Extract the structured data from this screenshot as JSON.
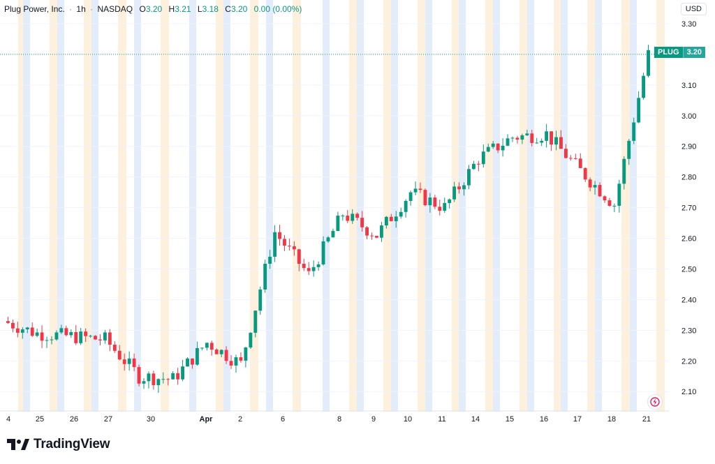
{
  "header": {
    "symbol": "Plug Power, Inc.",
    "interval": "1h",
    "exchange": "NASDAQ",
    "o_label": "O",
    "o_value": "3.20",
    "h_label": "H",
    "h_value": "3.21",
    "l_label": "L",
    "l_value": "3.18",
    "c_label": "C",
    "c_value": "3.20",
    "change": "0.00 (0.00%)"
  },
  "currency": "USD",
  "price_tag": {
    "ticker": "PLUG",
    "price": "3.20"
  },
  "branding": {
    "name": "TradingView"
  },
  "colors": {
    "up": "#089981",
    "down": "#f23645",
    "session_pre": "#e3ecfb",
    "session_post": "#fdf0dd"
  },
  "chart_data": {
    "type": "candlestick",
    "title": "Plug Power, Inc. · 1h · NASDAQ",
    "ylim": [
      2.03,
      3.33
    ],
    "y_ticks": [
      2.1,
      2.2,
      2.3,
      2.4,
      2.5,
      2.6,
      2.7,
      2.8,
      2.9,
      3.0,
      3.1,
      3.2,
      3.3
    ],
    "x_labels": [
      "4",
      "25",
      "26",
      "27",
      "30",
      "Apr",
      "2",
      "6",
      "8",
      "9",
      "10",
      "11",
      "14",
      "15",
      "16",
      "17",
      "18",
      "21"
    ],
    "day_closes": [
      {
        "day": "Mar 24",
        "close": 2.29
      },
      {
        "day": "Mar 25",
        "close": 2.28
      },
      {
        "day": "Mar 26",
        "close": 2.27
      },
      {
        "day": "Mar 27",
        "close": 2.15
      },
      {
        "day": "Mar 30",
        "close": 2.14
      },
      {
        "day": "Apr 1",
        "close": 2.26
      },
      {
        "day": "Apr 2",
        "close": 2.19
      },
      {
        "day": "Apr 6",
        "close": 2.62
      },
      {
        "day": "Apr 7",
        "close": 2.48
      },
      {
        "day": "Apr 8",
        "close": 2.68
      },
      {
        "day": "Apr 9",
        "close": 2.61
      },
      {
        "day": "Apr 10",
        "close": 2.75
      },
      {
        "day": "Apr 13",
        "close": 2.7
      },
      {
        "day": "Apr 14",
        "close": 2.86
      },
      {
        "day": "Apr 15",
        "close": 2.93
      },
      {
        "day": "Apr 16",
        "close": 2.94
      },
      {
        "day": "Apr 17",
        "close": 2.82
      },
      {
        "day": "Apr 20",
        "close": 2.71
      },
      {
        "day": "Apr 21",
        "close": 3.2
      }
    ],
    "last_price": 3.2,
    "price_line": 3.2
  }
}
